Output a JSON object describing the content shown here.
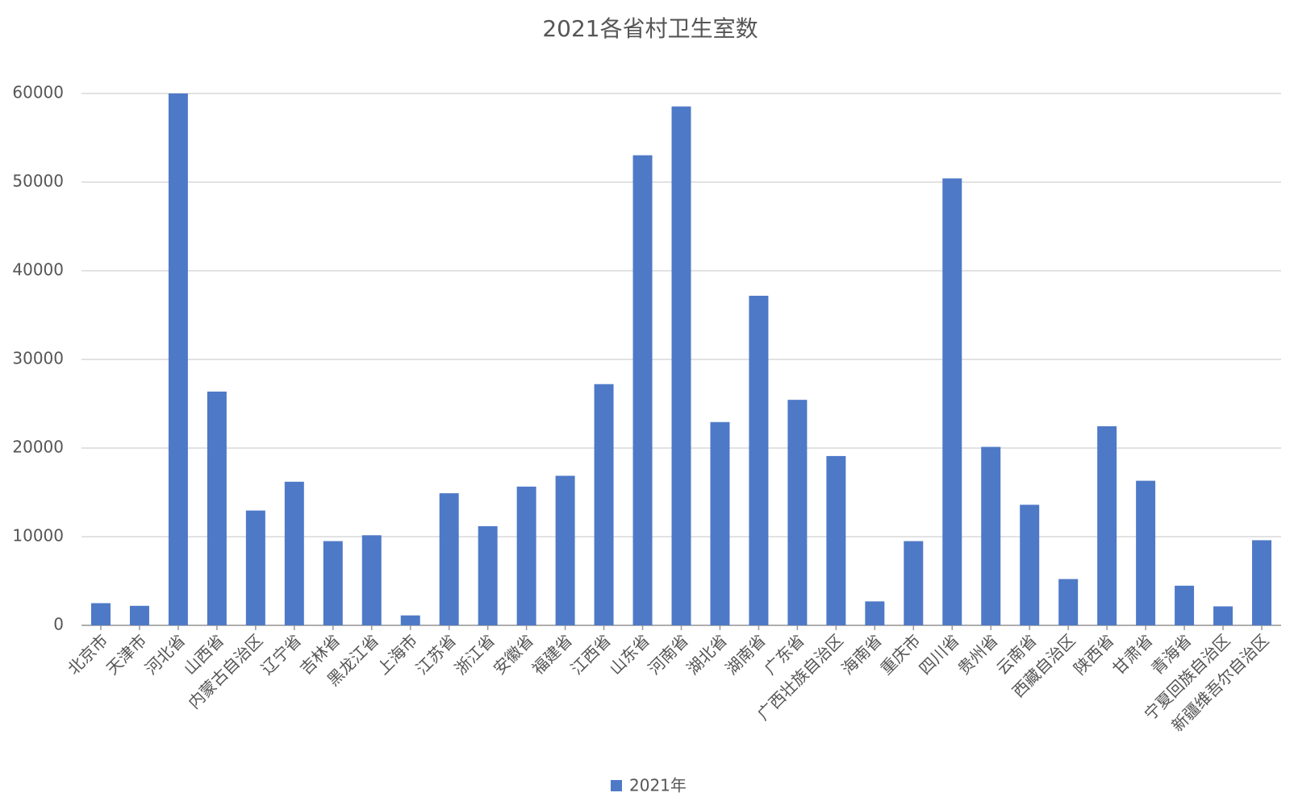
{
  "chart_data": {
    "type": "bar",
    "title": "2021各省村卫生室数",
    "categories": [
      "北京市",
      "天津市",
      "河北省",
      "山西省",
      "内蒙古自治区",
      "辽宁省",
      "吉林省",
      "黑龙江省",
      "上海市",
      "江苏省",
      "浙江省",
      "安徽省",
      "福建省",
      "江西省",
      "山东省",
      "河南省",
      "湖北省",
      "湖南省",
      "广东省",
      "广西壮族自治区",
      "海南省",
      "重庆市",
      "四川省",
      "贵州省",
      "云南省",
      "西藏自治区",
      "陕西省",
      "甘肃省",
      "青海省",
      "宁夏回族自治区",
      "新疆维吾尔自治区"
    ],
    "series": [
      {
        "name": "2021年",
        "color": "#4e79c7",
        "values": [
          2500,
          2200,
          60000,
          26370,
          12950,
          16200,
          9500,
          10160,
          1120,
          14900,
          11180,
          15650,
          16870,
          27210,
          53030,
          58530,
          22930,
          37180,
          25440,
          19100,
          2700,
          9500,
          50420,
          20130,
          13600,
          5220,
          22460,
          16310,
          4470,
          2140,
          9600
        ]
      }
    ],
    "ylim": [
      0,
      60000
    ],
    "yticks": [
      0,
      10000,
      20000,
      30000,
      40000,
      50000,
      60000
    ],
    "grid": true
  }
}
